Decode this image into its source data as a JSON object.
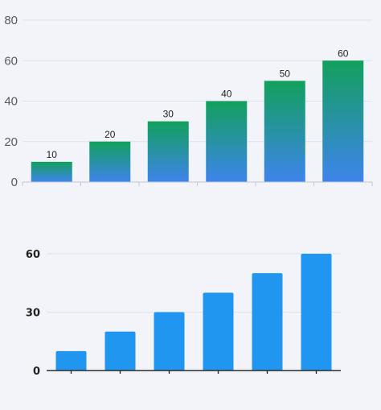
{
  "chart_data": [
    {
      "type": "bar",
      "categories": [
        "",
        "",
        "",
        "",
        "",
        ""
      ],
      "values": [
        10,
        20,
        30,
        40,
        50,
        60
      ],
      "ylim": [
        0,
        80
      ],
      "yticks": [
        "0",
        "20",
        "40",
        "60",
        "80"
      ],
      "data_labels": [
        "10",
        "20",
        "30",
        "40",
        "50",
        "60"
      ],
      "grid": true,
      "colors": {
        "bar_top": "#12a05c",
        "bar_bottom": "#3e84ec"
      }
    },
    {
      "type": "bar",
      "categories": [
        "",
        "",
        "",
        "",
        "",
        ""
      ],
      "values": [
        10,
        20,
        30,
        40,
        50,
        60
      ],
      "ylim": [
        0,
        60
      ],
      "yticks": [
        "0",
        "30",
        "60"
      ],
      "grid": true,
      "colors": {
        "bar": "#2196f0"
      }
    }
  ]
}
